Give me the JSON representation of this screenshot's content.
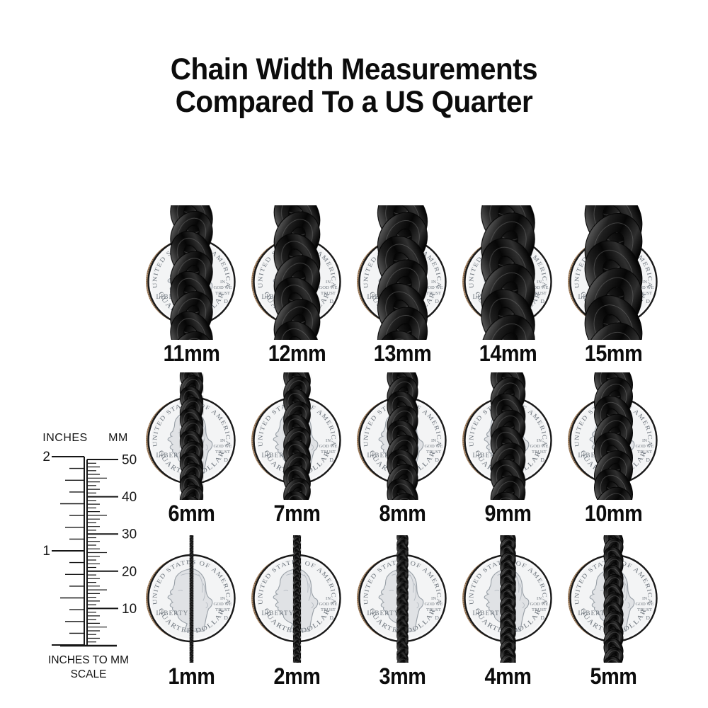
{
  "title": {
    "line1": "Chain Width Measurements",
    "line2": "Compared To a US Quarter"
  },
  "ruler": {
    "inches_label": "INCHES",
    "mm_label": "MM",
    "inch_ticks": [
      "2",
      "1"
    ],
    "mm_ticks": [
      "50",
      "40",
      "30",
      "20",
      "10"
    ],
    "caption_line1": "INCHES TO MM",
    "caption_line2": "SCALE"
  },
  "coin": {
    "top_text": "UNITED STATES OF AMERICA",
    "bottom_text": "QUARTER DOLLAR",
    "left_text": "LIBERTY",
    "motto": [
      "IN",
      "GOD WE",
      "TRUST"
    ],
    "mint_mark": "D"
  },
  "rows": [
    {
      "items": [
        {
          "mm": 11,
          "label": "11mm"
        },
        {
          "mm": 12,
          "label": "12mm"
        },
        {
          "mm": 13,
          "label": "13mm"
        },
        {
          "mm": 14,
          "label": "14mm"
        },
        {
          "mm": 15,
          "label": "15mm"
        }
      ]
    },
    {
      "items": [
        {
          "mm": 6,
          "label": "6mm"
        },
        {
          "mm": 7,
          "label": "7mm"
        },
        {
          "mm": 8,
          "label": "8mm"
        },
        {
          "mm": 9,
          "label": "9mm"
        },
        {
          "mm": 10,
          "label": "10mm"
        }
      ]
    },
    {
      "items": [
        {
          "mm": 1,
          "label": "1mm"
        },
        {
          "mm": 2,
          "label": "2mm"
        },
        {
          "mm": 3,
          "label": "3mm"
        },
        {
          "mm": 4,
          "label": "4mm"
        },
        {
          "mm": 5,
          "label": "5mm"
        }
      ]
    }
  ],
  "colors": {
    "text": "#0c0c0c",
    "ruler_ink": "#161616",
    "coin_face": "#f9f9fa",
    "coin_inner_face": "#f3f4f5",
    "coin_rim": "#191919",
    "coin_lineart": "#6f767e",
    "coin_profile_fill": "#e0e2e5",
    "coin_profile_line": "#99a0a7",
    "coin_hatch": "#b3b9c0",
    "coin_edge_brown": "#b18f6e",
    "coin_edge_brown_dark": "#6d573f",
    "chain_black": "#060606",
    "chain_gray": "#585858",
    "chain_highlight": "#777777"
  }
}
